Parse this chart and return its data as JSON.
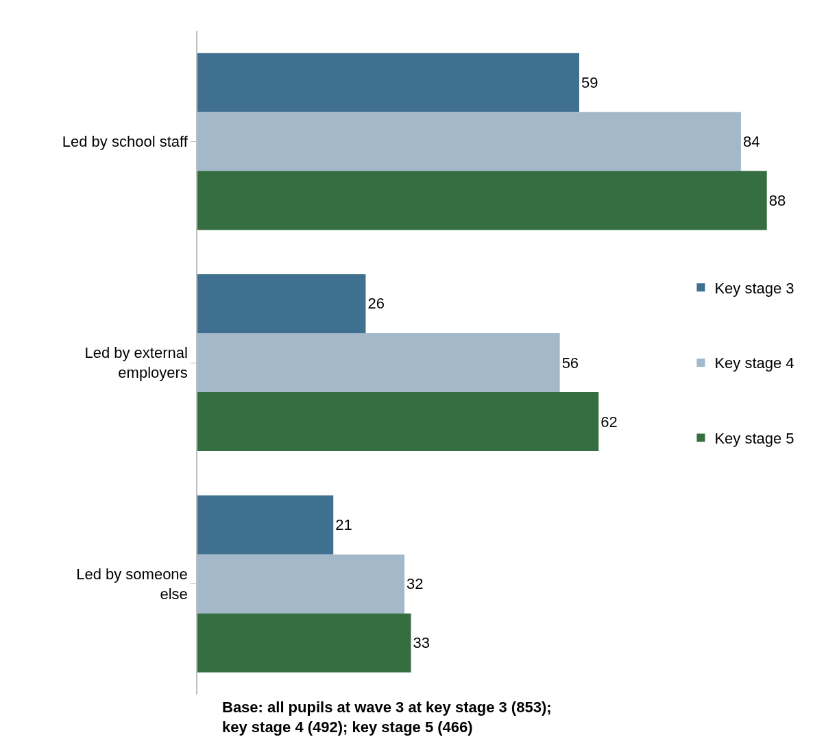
{
  "chart_data": {
    "type": "bar",
    "orientation": "horizontal",
    "categories": [
      "Led by school staff",
      "Led by external\nemployers",
      "Led by someone\nelse"
    ],
    "series": [
      {
        "name": "Key stage 3",
        "color": "#3f7090",
        "values": [
          59,
          26,
          21
        ]
      },
      {
        "name": "Key stage 4",
        "color": "#a3b9c9",
        "values": [
          84,
          56,
          32
        ]
      },
      {
        "name": "Key stage 5",
        "color": "#356e41",
        "values": [
          88,
          62,
          33
        ]
      }
    ],
    "data_labels": true,
    "legend": "right",
    "tick_labels": "y",
    "annotations": [
      "Base: all pupils at wave 3 at key stage 3 (853);\nkey stage 4 (492); key stage 5 (466)"
    ]
  }
}
